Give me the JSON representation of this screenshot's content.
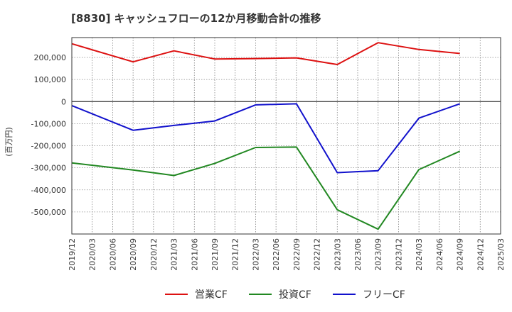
{
  "chart_data": {
    "type": "line",
    "title": "[8830]  キャッシュフローの12か月移動合計の推移",
    "ylabel": "(百万円)",
    "xlabel": "",
    "ylim": [
      -600000,
      290000
    ],
    "yticks": [
      200000,
      100000,
      0,
      -100000,
      -200000,
      -300000,
      -400000,
      -500000
    ],
    "ytick_labels": [
      "200,000",
      "100,000",
      "0",
      "-100,000",
      "-200,000",
      "-300,000",
      "-400,000",
      "-500,000"
    ],
    "categories": [
      "2019/12",
      "2020/03",
      "2020/06",
      "2020/09",
      "2020/12",
      "2021/03",
      "2021/06",
      "2021/09",
      "2021/12",
      "2022/03",
      "2022/06",
      "2022/09",
      "2022/12",
      "2023/03",
      "2023/06",
      "2023/09",
      "2023/12",
      "2024/03",
      "2024/06",
      "2024/09",
      "2024/12",
      "2025/03"
    ],
    "grid": true,
    "legend_position": "bottom",
    "series": [
      {
        "name": "営業CF",
        "color": "#dd1111",
        "values": [
          262000,
          null,
          null,
          180000,
          null,
          230000,
          null,
          193000,
          null,
          195000,
          null,
          198000,
          null,
          168000,
          null,
          267000,
          null,
          236000,
          null,
          218000,
          null,
          null
        ]
      },
      {
        "name": "投資CF",
        "color": "#228822",
        "values": [
          -278000,
          null,
          null,
          -310000,
          null,
          -335000,
          null,
          -280000,
          null,
          -208000,
          null,
          -206000,
          null,
          -490000,
          null,
          -578000,
          null,
          -308000,
          null,
          -225000,
          null,
          null
        ]
      },
      {
        "name": "フリーCF",
        "color": "#1111cc",
        "values": [
          -18000,
          null,
          null,
          -130000,
          null,
          -108000,
          null,
          -88000,
          null,
          -15000,
          null,
          -10000,
          null,
          -322000,
          null,
          -313000,
          null,
          -75000,
          null,
          -10000,
          null,
          null
        ]
      }
    ]
  }
}
